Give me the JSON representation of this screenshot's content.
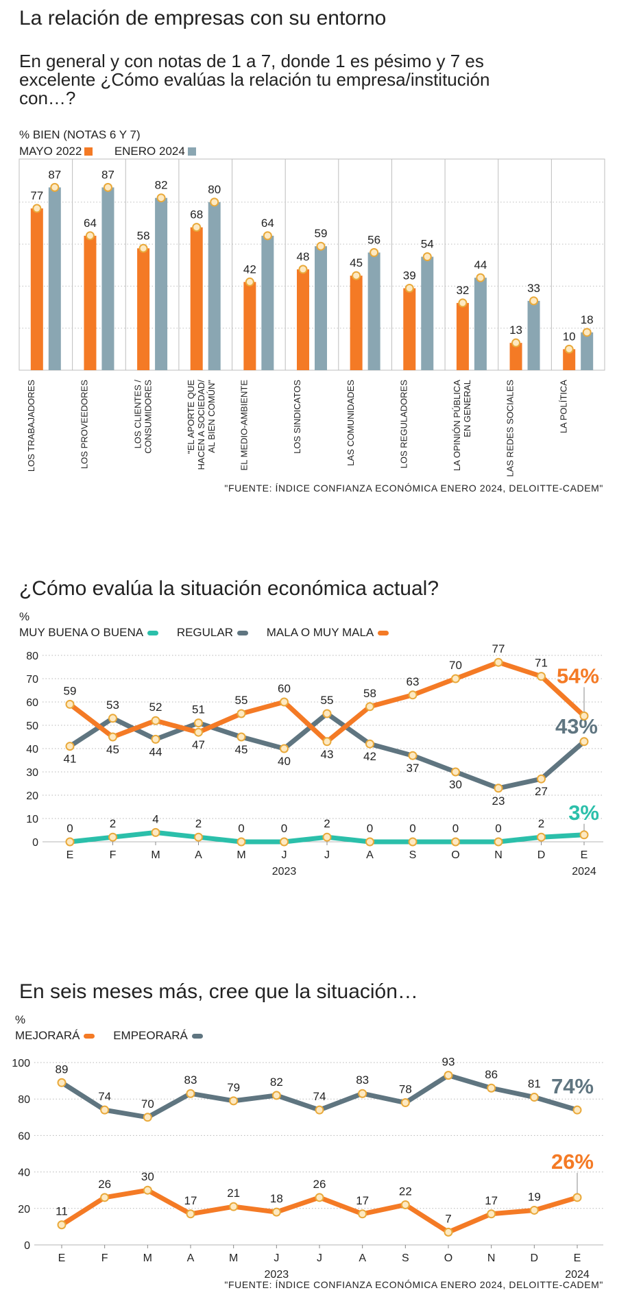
{
  "colors": {
    "orange": "#f47a25",
    "slate": "#8aa6b2",
    "slate_dark": "#5f7580",
    "teal": "#2bbfaa",
    "marker_fill": "#fde9c2",
    "marker_stroke": "#e9a93a"
  },
  "section1": {
    "title": "La relación de empresas con su entorno",
    "subtitle": "En general y con notas de 1 a 7, donde 1 es pésimo y 7 es excelente ¿Cómo evalúas la relación tu empresa/institución con…?",
    "unit_label": "% BIEN (NOTAS 6 Y 7)",
    "source": "\"FUENTE: ÍNDICE CONFIANZA ECONÓMICA ENERO 2024, DELOITTE-CADEM\""
  },
  "section2": {
    "title": "¿Cómo evalúa la situación económica actual?",
    "unit": "%"
  },
  "section3": {
    "title": "En seis meses más, cree que la situación…",
    "unit": "%",
    "source": "\"FUENTE: ÍNDICE CONFIANZA ECONÓMICA ENERO 2024, DELOITTE-CADEM\""
  },
  "chart_data": [
    {
      "type": "bar",
      "title": "La relación de empresas con su entorno",
      "ylabel": "% BIEN (NOTAS 6 Y 7)",
      "ylim": [
        0,
        100
      ],
      "grid": true,
      "legend": "top-left",
      "categories": [
        [
          "LOS TRABAJADORES"
        ],
        [
          "LOS PROVEEDORES"
        ],
        [
          "LOS CLIENTES /",
          "CONSUMIDORES"
        ],
        [
          "\"EL APORTE QUE",
          "HACEN A SOCIEDAD/",
          "AL BIEN COMÚN\""
        ],
        [
          "EL MEDIO-AMBIENTE"
        ],
        [
          "LOS SINDICATOS"
        ],
        [
          "LAS COMUNIDADES"
        ],
        [
          "LOS REGULADORES"
        ],
        [
          "LA OPINIÓN PÚBLICA",
          "EN GENERAL"
        ],
        [
          "LAS REDES SOCIALES"
        ],
        [
          "LA POLÍTICA"
        ]
      ],
      "series": [
        {
          "name": "MAYO 2022",
          "color": "#f47a25",
          "values": [
            77,
            64,
            58,
            68,
            42,
            48,
            45,
            39,
            32,
            13,
            10
          ]
        },
        {
          "name": "ENERO 2024",
          "color": "#8aa6b2",
          "values": [
            87,
            87,
            82,
            80,
            64,
            59,
            56,
            54,
            44,
            33,
            18
          ]
        }
      ]
    },
    {
      "type": "line",
      "title": "¿Cómo evalúa la situación económica actual?",
      "ylabel": "%",
      "ylim": [
        0,
        80
      ],
      "yticks": [
        0,
        10,
        20,
        30,
        40,
        50,
        60,
        70,
        80
      ],
      "x": [
        "E",
        "F",
        "M",
        "A",
        "M",
        "J",
        "J",
        "A",
        "S",
        "O",
        "N",
        "D",
        "E"
      ],
      "year_labels": [
        {
          "text": "2023",
          "index": 5
        },
        {
          "text": "2024",
          "index": 12
        }
      ],
      "grid": true,
      "legend": "top-left",
      "series": [
        {
          "name": "MUY BUENA O BUENA",
          "color": "#2bbfaa",
          "values": [
            0,
            2,
            4,
            2,
            0,
            0,
            2,
            0,
            0,
            0,
            0,
            2,
            3
          ],
          "last_label": "3%"
        },
        {
          "name": "REGULAR",
          "color": "#5f7580",
          "values": [
            41,
            53,
            44,
            51,
            45,
            40,
            55,
            42,
            37,
            30,
            23,
            27,
            43
          ],
          "last_label": "43%"
        },
        {
          "name": "MALA O MUY MALA",
          "color": "#f47a25",
          "values": [
            59,
            45,
            52,
            47,
            55,
            60,
            43,
            58,
            63,
            70,
            77,
            71,
            54
          ],
          "last_label": "54%"
        }
      ]
    },
    {
      "type": "line",
      "title": "En seis meses más, cree que la situación…",
      "ylabel": "%",
      "ylim": [
        0,
        100
      ],
      "yticks": [
        0,
        20,
        40,
        60,
        80,
        100
      ],
      "x": [
        "E",
        "F",
        "M",
        "A",
        "M",
        "J",
        "J",
        "A",
        "S",
        "O",
        "N",
        "D",
        "E"
      ],
      "year_labels": [
        {
          "text": "2023",
          "index": 5
        },
        {
          "text": "2024",
          "index": 12
        }
      ],
      "grid": true,
      "legend": "top-left",
      "series": [
        {
          "name": "MEJORARÁ",
          "color": "#f47a25",
          "values": [
            11,
            26,
            30,
            17,
            21,
            18,
            26,
            17,
            22,
            7,
            17,
            19,
            26
          ],
          "last_label": "26%"
        },
        {
          "name": "EMPEORARÁ",
          "color": "#5f7580",
          "values": [
            89,
            74,
            70,
            83,
            79,
            82,
            74,
            83,
            78,
            93,
            86,
            81,
            74
          ],
          "last_label": "74%"
        }
      ]
    }
  ]
}
